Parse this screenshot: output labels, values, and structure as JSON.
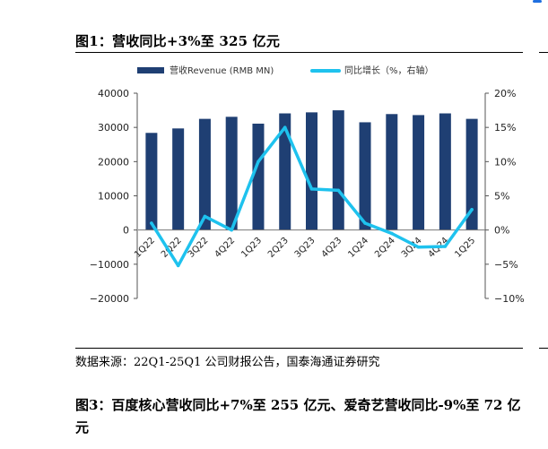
{
  "figure_title": "图1：营收同比+3%至 325 亿元",
  "source_note": "数据来源：22Q1-25Q1 公司财报公告，国泰海通证券研究",
  "next_figure_title": "图3：百度核心营收同比+7%至 255 亿元、爱奇艺营收同比-9%至 72 亿元",
  "colors": {
    "bar": "#1f3f73",
    "line": "#1ec2ee",
    "axis": "#555555"
  },
  "chart_data": {
    "type": "bar",
    "categories": [
      "1Q22",
      "2Q22",
      "3Q22",
      "4Q22",
      "1Q23",
      "2Q23",
      "3Q23",
      "4Q23",
      "1Q24",
      "2Q24",
      "3Q24",
      "4Q24",
      "1Q25"
    ],
    "series": [
      {
        "name": "营收Revenue (RMB MN)",
        "type": "bar",
        "axis": "left",
        "values": [
          28400,
          29700,
          32500,
          33100,
          31100,
          34100,
          34400,
          35000,
          31500,
          33900,
          33600,
          34100,
          32500
        ]
      },
      {
        "name": "同比增长（%，右轴）",
        "type": "line",
        "axis": "right",
        "values": [
          1,
          -5.2,
          2,
          0,
          10,
          15,
          6,
          5.8,
          1,
          -0.5,
          -2.5,
          -2.4,
          3
        ]
      }
    ],
    "ylim": [
      -20000,
      40000
    ],
    "y_ticks": [
      "40000",
      "30000",
      "20000",
      "10000",
      "0",
      "−10000",
      "−20000"
    ],
    "y2lim": [
      -10,
      20
    ],
    "y2_ticks": [
      "20%",
      "15%",
      "10%",
      "5%",
      "0%",
      "−5%",
      "−10%"
    ],
    "legend_position": "top",
    "grid": false
  }
}
